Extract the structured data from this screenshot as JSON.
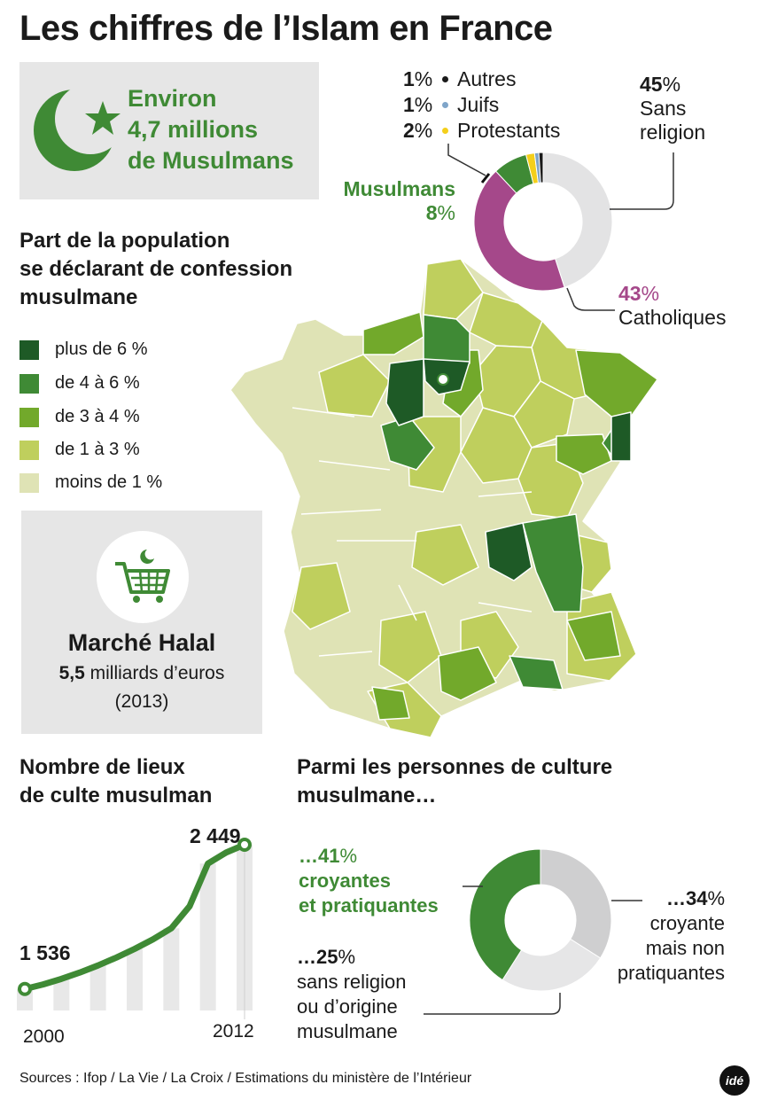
{
  "title": "Les chiffres de l’Islam en France",
  "headline_box": {
    "icon": "crescent-star-icon",
    "line1": "Environ",
    "line2": "4,7 millions",
    "line3": "de Musulmans"
  },
  "religion_donut": {
    "slices": [
      {
        "label": "Sans religion",
        "pct_text": "45",
        "color": "#e3e3e4"
      },
      {
        "label": "Catholiques",
        "pct_text": "43",
        "color": "#a5488a"
      },
      {
        "label": "Musulmans",
        "pct_text": "8",
        "color": "#3f8a35"
      },
      {
        "label": "Protestants",
        "pct_text": "2",
        "color": "#f4cf1b"
      },
      {
        "label": "Juifs",
        "pct_text": "1",
        "color": "#7fa5c9"
      },
      {
        "label": "Autres",
        "pct_text": "1",
        "color": "#1a1a1a"
      }
    ],
    "small_rows": [
      {
        "pct": "1",
        "label": "Autres",
        "dot_color": "#1a1a1a"
      },
      {
        "pct": "1",
        "label": "Juifs",
        "dot_color": "#7fa5c9"
      },
      {
        "pct": "2",
        "label": "Protestants",
        "dot_color": "#f4cf1b"
      }
    ],
    "sans_religion": {
      "pct": "45",
      "line1": "Sans",
      "line2": "religion"
    },
    "catholiques": {
      "pct": "43",
      "label": "Catholiques"
    },
    "musulmans": {
      "label": "Musulmans",
      "pct": "8"
    },
    "pct_sign": "%"
  },
  "map_section": {
    "title_line1": "Part de la population",
    "title_line2": "se déclarant de confession",
    "title_line3": "musulmane",
    "legend": [
      {
        "label": "plus de 6 %",
        "color": "#1e5a26"
      },
      {
        "label": "de 4 à 6 %",
        "color": "#3f8a35"
      },
      {
        "label": "de 3 à 4 %",
        "color": "#72a92b"
      },
      {
        "label": "de 1 à 3 %",
        "color": "#bfcf5d"
      },
      {
        "label": "moins de 1 %",
        "color": "#dfe3b5"
      }
    ]
  },
  "halal_box": {
    "icon": "shopping-cart-crescent-icon",
    "title": "Marché Halal",
    "amount": "5,5",
    "amount_rest": " milliards d’euros",
    "year": "(2013)"
  },
  "places_section": {
    "title_line1": "Nombre de lieux",
    "title_line2": "de culte musulman",
    "start_value": "1 536",
    "end_value": "2 449",
    "start_year": "2000",
    "end_year": "2012"
  },
  "chart_data": [
    {
      "type": "line",
      "title": "Nombre de lieux de culte musulman",
      "x": [
        2000,
        2001,
        2002,
        2003,
        2004,
        2005,
        2006,
        2007,
        2008,
        2009,
        2010,
        2011,
        2012
      ],
      "series": [
        {
          "values": [
            1536,
            1565,
            1600,
            1640,
            1685,
            1735,
            1790,
            1850,
            1920,
            2060,
            2330,
            2400,
            2449
          ]
        }
      ],
      "xticks": [
        "2000",
        "2012"
      ],
      "ylim": [
        1400,
        2550
      ],
      "grid": false
    },
    {
      "type": "pie",
      "title": "",
      "categories": [
        "Sans religion",
        "Catholiques",
        "Musulmans",
        "Protestants",
        "Juifs",
        "Autres"
      ],
      "values": [
        45,
        43,
        8,
        2,
        1,
        1
      ]
    },
    {
      "type": "pie",
      "title": "Parmi les personnes de culture musulmane…",
      "categories": [
        "croyantes et pratiquantes",
        "croyante mais non pratiquantes",
        "sans religion ou d’origine musulmane"
      ],
      "values": [
        41,
        34,
        25
      ]
    }
  ],
  "culture_section": {
    "title_line1": "Parmi les personnes de culture",
    "title_line2": "musulmane…",
    "slices": [
      {
        "label": "croyantes et pratiquantes",
        "value": 41,
        "color": "#3f8a35"
      },
      {
        "label": "croyante mais non pratiquantes",
        "value": 34,
        "color": "#cfcfd0"
      },
      {
        "label": "sans religion ou d’origine musulmane",
        "value": 25,
        "color": "#e6e6e7"
      }
    ],
    "pratiquantes": {
      "pct": "…41",
      "line1": "croyantes",
      "line2": "et pratiquantes"
    },
    "non_pratiquantes": {
      "pct": "…34",
      "line1": "croyante",
      "line2": "mais non",
      "line3": "pratiquantes"
    },
    "sans_religion": {
      "pct": "…25",
      "line1": "sans religion",
      "line2": "ou d’origine",
      "line3": "musulmane"
    },
    "pct_sign": "%"
  },
  "footer": {
    "sources": "Sources : Ifop / La Vie / La Croix / Estimations du ministère de l’Intérieur",
    "logo": "idé"
  }
}
